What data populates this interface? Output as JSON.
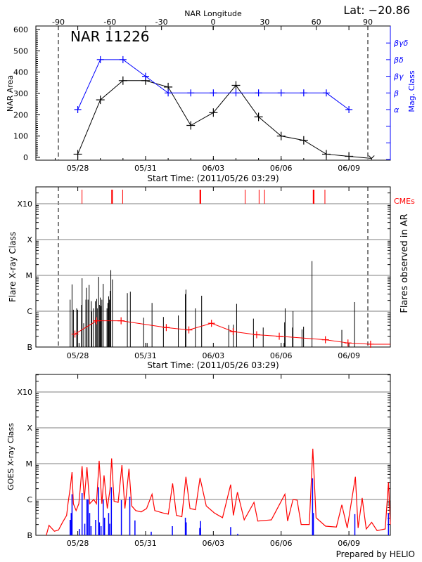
{
  "chart_data": [
    {
      "type": "line",
      "panel": "nar",
      "title": "NAR 11226",
      "lat_label": "Lat: −20.86",
      "top_axis_label": "NAR Longitude",
      "top_ticks": [
        "-90",
        "-60",
        "-30",
        "0",
        "30",
        "60",
        "90"
      ],
      "top_tick_values": [
        -90,
        -60,
        -30,
        0,
        30,
        60,
        90
      ],
      "longitude_markers": [
        -90,
        90
      ],
      "ylabel": "NAR Area",
      "ylim": [
        0,
        600
      ],
      "yticks": [
        "600",
        "500",
        "400",
        "300",
        "200",
        "100",
        "0"
      ],
      "y2label": "Mag. Class",
      "y2_classes": [
        "α",
        "β",
        "βγ",
        "βδ",
        "βγδ"
      ],
      "xticks": [
        "05/28",
        "05/31",
        "06/03",
        "06/06",
        "06/09"
      ],
      "xlabel": "Start Time: (2011/05/26 03:29)",
      "xlim": [
        "05/26 03:29",
        "06/10 20:00"
      ],
      "series": [
        {
          "color": "#000000",
          "x": [
            "05/28 00:00",
            "05/29 00:00",
            "05/30 00:00",
            "05/31 00:00",
            "06/01 00:00",
            "06/02 00:00",
            "06/03 00:00",
            "06/04 00:00",
            "06/05 00:00",
            "06/06 00:00",
            "06/07 00:00",
            "06/08 00:00",
            "06/09 00:00",
            "06/10 00:00"
          ],
          "values": [
            15,
            270,
            360,
            360,
            330,
            150,
            210,
            338,
            190,
            100,
            80,
            15,
            5,
            -5
          ]
        },
        {
          "color": "#0000ff",
          "axis": "right",
          "x": [
            "05/28 00:00",
            "05/29 00:00",
            "05/30 00:00",
            "05/31 00:00",
            "06/01 00:00",
            "06/02 00:00",
            "06/03 00:00",
            "06/04 00:00",
            "06/05 00:00",
            "06/06 00:00",
            "06/07 00:00",
            "06/08 00:00",
            "06/09 00:00"
          ],
          "values": [
            "α",
            "βδ",
            "βδ",
            "βγ",
            "β",
            "β",
            "β",
            "β",
            "β",
            "β",
            "β",
            "β",
            "α"
          ]
        }
      ]
    },
    {
      "type": "bar",
      "panel": "flares",
      "ylabel": "Flare X-ray Class",
      "y2label": "Flares observed in AR",
      "cme_label": "CMEs",
      "cme_color": "#ff0000",
      "yscale": "log",
      "yticks": [
        "X10",
        "X",
        "M",
        "C",
        "B"
      ],
      "grid": true,
      "xticks": [
        "05/28",
        "05/31",
        "06/03",
        "06/06",
        "06/09"
      ],
      "xlabel": "Start Time: (2011/05/26 03:29)",
      "cmes": [
        "05/28 04:30",
        "05/29 12:25",
        "05/29 23:40",
        "06/02 10:10",
        "06/04 09:45",
        "06/05 00:35",
        "06/05 06:20",
        "06/07 10:30",
        "06/07 22:30"
      ],
      "cme_wide": [
        false,
        true,
        false,
        true,
        false,
        false,
        false,
        true,
        false
      ],
      "flares": [
        [
          "05/27 15:53",
          "C2.1"
        ],
        [
          "05/27 17:54",
          "C5.6"
        ],
        [
          "05/27 19:20",
          "C1.1"
        ],
        [
          "05/27 22:48",
          "C1.2"
        ],
        [
          "05/27 23:57",
          "C1.1"
        ],
        [
          "05/28 01:24",
          "B1.3"
        ],
        [
          "05/28 03:59",
          "C1.5"
        ],
        [
          "05/28 04:34",
          "C8.3"
        ],
        [
          "05/28 06:17",
          "B4.6"
        ],
        [
          "05/28 08:36",
          "C2.1"
        ],
        [
          "05/28 09:10",
          "C4.5"
        ],
        [
          "05/28 10:54",
          "C2.1"
        ],
        [
          "05/28 12:03",
          "C5.4"
        ],
        [
          "05/28 14:21",
          "C1.9"
        ],
        [
          "05/28 14:56",
          "B9.8"
        ],
        [
          "05/28 16:39",
          "C1.2"
        ],
        [
          "05/28 18:40",
          "C1.9"
        ],
        [
          "05/28 20:07",
          "C2.2"
        ],
        [
          "05/28 20:41",
          "C1.2"
        ],
        [
          "05/28 22:08",
          "C9.1"
        ],
        [
          "05/28 22:59",
          "C1.5"
        ],
        [
          "05/28 23:51",
          "C2.4"
        ],
        [
          "05/29 00:43",
          "C1.4"
        ],
        [
          "05/29 01:35",
          "C2.1"
        ],
        [
          "05/29 03:01",
          "C5.8"
        ],
        [
          "05/29 07:03",
          "C1.2"
        ],
        [
          "05/29 07:55",
          "C1.7"
        ],
        [
          "05/29 08:47",
          "C2.6"
        ],
        [
          "05/29 09:39",
          "C2.1"
        ],
        [
          "05/29 10:31",
          "C3.7"
        ],
        [
          "05/29 11:05",
          "M1.4"
        ],
        [
          "05/29 12:49",
          "C7.7"
        ],
        [
          "05/30 04:39",
          "C3.2"
        ],
        [
          "05/30 07:49",
          "C3.5"
        ],
        [
          "05/30 21:56",
          "B6.6"
        ],
        [
          "05/31 01:41",
          "B1.3"
        ],
        [
          "05/31 06:52",
          "C1.7"
        ],
        [
          "05/31 18:58",
          "B6.9"
        ],
        [
          "06/01 10:48",
          "B7.6"
        ],
        [
          "06/01 18:17",
          "C3.0"
        ],
        [
          "06/01 18:52",
          "C4.0"
        ],
        [
          "06/02 04:57",
          "C1.2"
        ],
        [
          "06/02 11:34",
          "C2.7"
        ],
        [
          "06/03 16:22",
          "B4.1"
        ],
        [
          "06/03 21:16",
          "B4.2"
        ],
        [
          "06/04 00:43",
          "C1.6"
        ],
        [
          "06/04 18:35",
          "B6.2"
        ],
        [
          "06/05 04:57",
          "B3.5"
        ],
        [
          "06/06 03:07",
          "B1.3"
        ],
        [
          "06/06 03:42",
          "B4.9"
        ],
        [
          "06/06 04:16",
          "C1.2"
        ],
        [
          "06/06 12:03",
          "B3.5"
        ],
        [
          "06/06 12:37",
          "C1.0"
        ],
        [
          "06/06 22:08",
          "B3.1"
        ],
        [
          "06/06 23:51",
          "B3.7"
        ],
        [
          "06/07 08:47",
          "M2.5"
        ],
        [
          "06/08 16:28",
          "B3.0"
        ],
        [
          "06/09 06:00",
          "C1.8"
        ]
      ],
      "average": {
        "color": "#ff0000",
        "points": [
          [
            "05/27 21:00",
            "B2.3"
          ],
          [
            "05/28 20:00",
            "B5.4"
          ],
          [
            "05/29 22:00",
            "B5.4"
          ],
          [
            "05/31 22:00",
            "B3.5"
          ],
          [
            "06/01 22:00",
            "B3.0"
          ],
          [
            "06/02 22:00",
            "B4.6"
          ],
          [
            "06/03 21:00",
            "B2.7"
          ],
          [
            "06/04 22:00",
            "B2.2"
          ],
          [
            "06/05 22:00",
            "B2.0"
          ],
          [
            "06/07 23:00",
            "B1.6"
          ],
          [
            "06/08 23:00",
            "B1.3"
          ],
          [
            "06/09 23:00",
            "B1.2"
          ],
          [
            "06/10 20:00",
            "B1.2"
          ]
        ]
      }
    },
    {
      "type": "line",
      "panel": "goes",
      "ylabel": "GOES X-ray Class",
      "yscale": "log",
      "yticks": [
        "X10",
        "X",
        "M",
        "C",
        "B"
      ],
      "grid": true,
      "xticks": [
        "05/28",
        "05/31",
        "06/03",
        "06/06",
        "06/09"
      ],
      "footer": "Prepared by HELIO",
      "series": [
        {
          "color": "#ff0000",
          "points": [
            [
              "05/26 14:33",
              "B1.0"
            ],
            [
              "05/26 17:25",
              "B1.9"
            ],
            [
              "05/26 23:11",
              "B1.3"
            ],
            [
              "05/27 03:30",
              "B1.4"
            ],
            [
              "05/27 07:49",
              "B2.3"
            ],
            [
              "05/27 12:09",
              "B3.6"
            ],
            [
              "05/27 13:35",
              "B7.6"
            ],
            [
              "05/27 15:53",
              "C2.0"
            ],
            [
              "05/27 17:54",
              "C5.8"
            ],
            [
              "05/27 19:20",
              "B7.6"
            ],
            [
              "05/27 22:13",
              "B4.9"
            ],
            [
              "05/28 01:06",
              "B7.6"
            ],
            [
              "05/28 02:32",
              "C1.9"
            ],
            [
              "05/28 04:34",
              "C8.5"
            ],
            [
              "05/28 06:52",
              "C1.0"
            ],
            [
              "05/28 09:45",
              "C7.9"
            ],
            [
              "05/28 12:37",
              "B7.6"
            ],
            [
              "05/28 16:57",
              "C1.0"
            ],
            [
              "05/28 19:49",
              "B7.6"
            ],
            [
              "05/28 22:42",
              "M1.2"
            ],
            [
              "05/29 01:35",
              "B7.6"
            ],
            [
              "05/29 03:53",
              "C4.7"
            ],
            [
              "05/29 07:21",
              "B5.6"
            ],
            [
              "05/29 10:13",
              "C1.9"
            ],
            [
              "05/29 11:57",
              "M1.4"
            ],
            [
              "05/29 14:33",
              "B8.9"
            ],
            [
              "05/29 18:52",
              "B8.3"
            ],
            [
              "05/29 22:54",
              "C9.1"
            ],
            [
              "05/30 02:04",
              "B5.6"
            ],
            [
              "05/30 06:23",
              "C7.2"
            ],
            [
              "05/30 09:16",
              "B6.6"
            ],
            [
              "05/30 13:35",
              "B4.9"
            ],
            [
              "05/30 19:20",
              "B4.5"
            ],
            [
              "05/31 01:06",
              "B5.6"
            ],
            [
              "05/31 06:52",
              "C1.4"
            ],
            [
              "05/31 09:45",
              "B4.9"
            ],
            [
              "05/31 18:23",
              "B4.2"
            ],
            [
              "06/01 00:09",
              "B3.9"
            ],
            [
              "06/01 04:45",
              "C2.8"
            ],
            [
              "06/01 08:47",
              "B3.6"
            ],
            [
              "06/01 14:33",
              "B3.3"
            ],
            [
              "06/01 18:52",
              "C4.3"
            ],
            [
              "06/01 23:11",
              "B5.6"
            ],
            [
              "06/02 04:57",
              "B5.2"
            ],
            [
              "06/02 09:50",
              "C4.0"
            ],
            [
              "06/02 16:28",
              "B6.6"
            ],
            [
              "06/03 01:06",
              "B4.2"
            ],
            [
              "06/03 09:45",
              "B3.1"
            ],
            [
              "06/03 18:23",
              "C2.6"
            ],
            [
              "06/03 21:16",
              "B3.6"
            ],
            [
              "06/04 01:35",
              "C1.6"
            ],
            [
              "06/04 08:47",
              "B2.7"
            ],
            [
              "06/04 19:09",
              "B8.3"
            ],
            [
              "06/04 23:11",
              "B2.5"
            ],
            [
              "06/05 13:35",
              "B2.7"
            ],
            [
              "06/06 03:59",
              "C1.4"
            ],
            [
              "06/06 06:52",
              "B2.5"
            ],
            [
              "06/06 12:37",
              "C1.0"
            ],
            [
              "06/06 16:57",
              "B9.6"
            ],
            [
              "06/06 21:16",
              "B2.0"
            ],
            [
              "06/07 05:54",
              "B2.0"
            ],
            [
              "06/07 09:39",
              "M2.6"
            ],
            [
              "06/07 13:06",
              "B3.1"
            ],
            [
              "06/07 23:11",
              "B1.8"
            ],
            [
              "06/08 10:42",
              "B1.7"
            ],
            [
              "06/08 16:28",
              "B7.1"
            ],
            [
              "06/08 22:13",
              "B1.6"
            ],
            [
              "06/09 06:52",
              "C4.3"
            ],
            [
              "06/09 09:45",
              "B1.6"
            ],
            [
              "06/09 14:04",
              "C1.1"
            ],
            [
              "06/09 18:23",
              "B1.5"
            ],
            [
              "06/10 00:09",
              "B2.3"
            ],
            [
              "06/10 05:54",
              "B1.35"
            ],
            [
              "06/10 14:33",
              "B1.5"
            ],
            [
              "06/10 18:00",
              "C3.0"
            ],
            [
              "06/10 20:00",
              "B2.0"
            ]
          ]
        },
        {
          "color": "#0000ff",
          "points": [
            [
              "05/27 15:53",
              "B2.7"
            ],
            [
              "05/27 17:02",
              "B4.2"
            ],
            [
              "05/27 17:54",
              "C1.4"
            ],
            [
              "05/28 01:41",
              "B1.5"
            ],
            [
              "05/28 04:34",
              "C1.5"
            ],
            [
              "05/28 07:26",
              "B2.1"
            ],
            [
              "05/28 09:45",
              "C1.0"
            ],
            [
              "05/28 10:54",
              "C1.0"
            ],
            [
              "05/28 12:37",
              "B4.2"
            ],
            [
              "05/28 14:04",
              "B1.8"
            ],
            [
              "05/28 18:58",
              "B2.7"
            ],
            [
              "05/28 22:08",
              "C2.2"
            ],
            [
              "05/28 22:59",
              "B2.3"
            ],
            [
              "05/29 00:43",
              "B1.8"
            ],
            [
              "05/29 03:01",
              "C1.0"
            ],
            [
              "05/29 04:28",
              "B3.1"
            ],
            [
              "05/29 08:47",
              "B4.2"
            ],
            [
              "05/29 09:56",
              "B2.1"
            ],
            [
              "05/29 11:40",
              "C2.2"
            ],
            [
              "05/29 22:19",
              "B9.6"
            ],
            [
              "05/30 07:15",
              "C1.2"
            ],
            [
              "05/30 12:43",
              "B2.6"
            ],
            [
              "05/31 06:00",
              "B1.26"
            ],
            [
              "06/01 04:28",
              "B1.8"
            ],
            [
              "06/01 18:17",
              "B3.1"
            ],
            [
              "06/01 19:09",
              "B2.3"
            ],
            [
              "06/02 09:33",
              "B1.6"
            ],
            [
              "06/02 10:25",
              "B2.5"
            ],
            [
              "06/03 18:23",
              "B1.7"
            ],
            [
              "06/04 01:52",
              "B1.1"
            ],
            [
              "06/07 09:22",
              "C3.9"
            ],
            [
              "06/07 10:13",
              "B4.2"
            ],
            [
              "06/09 06:17",
              "B3.9"
            ],
            [
              "06/10 18:00",
              "B4.2"
            ]
          ]
        }
      ]
    }
  ]
}
